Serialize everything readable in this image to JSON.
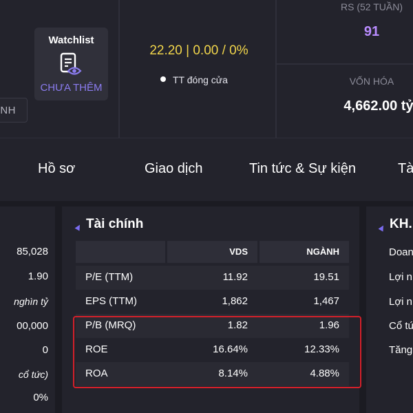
{
  "header": {
    "name_tab": "NH",
    "watchlist": {
      "title": "Watchlist",
      "status": "CHƯA THÊM",
      "icon": "watchlist-doc-eye-icon"
    },
    "price": "22.20 | 0.00 / 0%",
    "close_status": "TT đóng cửa",
    "rs_label": "RS (52 TUẦN)",
    "rs_value": "91",
    "cap_label": "VỐN HÓA",
    "cap_value": "4,662.00 tỷ"
  },
  "tabs": [
    "Hồ sơ",
    "Giao dịch",
    "Tin tức & Sự kiện",
    "Tà"
  ],
  "left_panel": {
    "values": [
      "85,028",
      "1.90",
      "nghìn tỷ",
      "00,000",
      "0",
      "cổ tức)",
      "0%"
    ]
  },
  "finance": {
    "title": "Tài chính",
    "columns": [
      "",
      "VDS",
      "NGÀNH"
    ],
    "rows": [
      {
        "label": "P/E (TTM)",
        "vds": "11.92",
        "nganh": "19.51"
      },
      {
        "label": "EPS (TTM)",
        "vds": "1,862",
        "nganh": "1,467"
      },
      {
        "label": "P/B (MRQ)",
        "vds": "1.82",
        "nganh": "1.96"
      },
      {
        "label": "ROE",
        "vds": "16.64%",
        "nganh": "12.33%"
      },
      {
        "label": "ROA",
        "vds": "8.14%",
        "nganh": "4.88%"
      }
    ]
  },
  "right_panel": {
    "title": "KH.K",
    "items": [
      "Doan",
      "Lợi n",
      "Lợi n",
      "Cổ tứ",
      "Tăng"
    ]
  },
  "colors": {
    "background": "#23232c",
    "price": "#f2d64b",
    "rs_value": "#b98cff",
    "accent": "#7b6cf0",
    "highlight": "#d4202a"
  }
}
